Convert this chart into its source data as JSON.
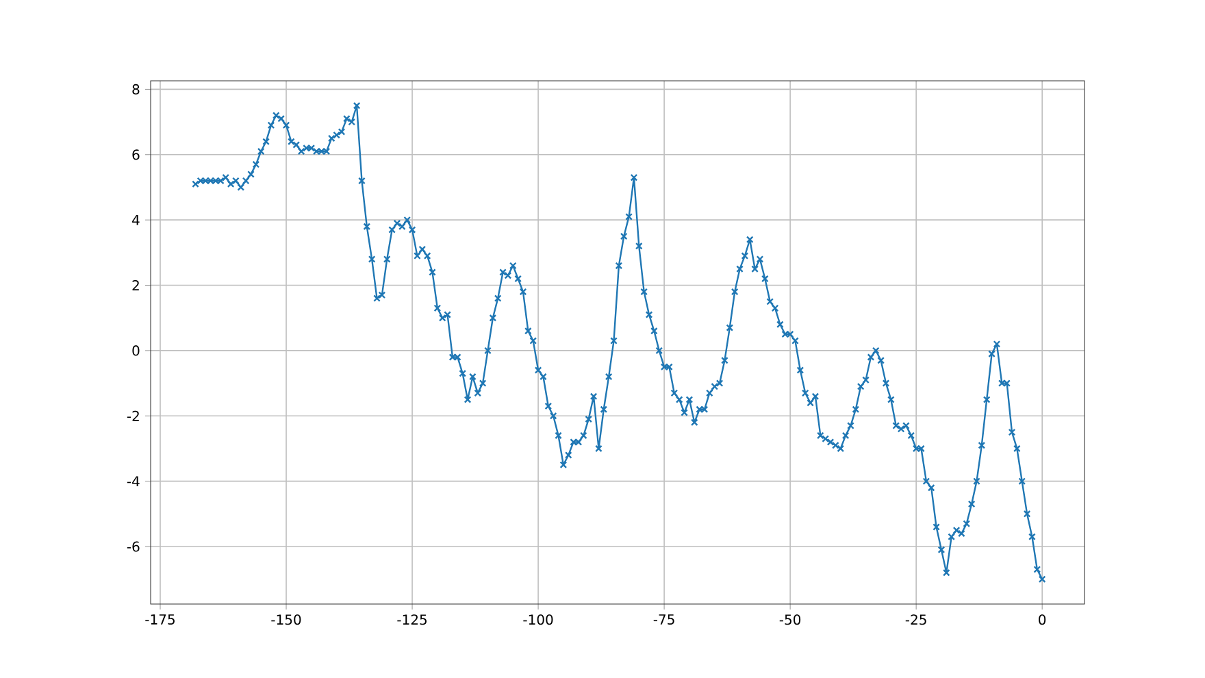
{
  "chart_data": {
    "type": "line",
    "marker": "cross",
    "line_style": "solid",
    "grid": true,
    "xlim": [
      -176.9,
      8.4
    ],
    "ylim": [
      -7.76,
      8.26
    ],
    "xticks": [
      -175,
      -150,
      -125,
      -100,
      -75,
      -50,
      -25,
      0
    ],
    "yticks": [
      -6,
      -4,
      -2,
      0,
      2,
      4,
      6,
      8
    ],
    "x": [
      -168,
      -167,
      -166,
      -165,
      -164,
      -163,
      -162,
      -161,
      -160,
      -159,
      -158,
      -157,
      -156,
      -155,
      -154,
      -153,
      -152,
      -151,
      -150,
      -149,
      -148,
      -147,
      -146,
      -145,
      -144,
      -143,
      -142,
      -141,
      -140,
      -139,
      -138,
      -137,
      -136,
      -135,
      -134,
      -133,
      -132,
      -131,
      -130,
      -129,
      -128,
      -127,
      -126,
      -125,
      -124,
      -123,
      -122,
      -121,
      -120,
      -119,
      -118,
      -117,
      -116,
      -115,
      -114,
      -113,
      -112,
      -111,
      -110,
      -109,
      -108,
      -107,
      -106,
      -105,
      -104,
      -103,
      -102,
      -101,
      -100,
      -99,
      -98,
      -97,
      -96,
      -95,
      -94,
      -93,
      -92,
      -91,
      -90,
      -89,
      -88,
      -87,
      -86,
      -85,
      -84,
      -83,
      -82,
      -81,
      -80,
      -79,
      -78,
      -77,
      -76,
      -75,
      -74,
      -73,
      -72,
      -71,
      -70,
      -69,
      -68,
      -67,
      -66,
      -65,
      -64,
      -63,
      -62,
      -61,
      -60,
      -59,
      -58,
      -57,
      -56,
      -55,
      -54,
      -53,
      -52,
      -51,
      -50,
      -49,
      -48,
      -47,
      -46,
      -45,
      -44,
      -43,
      -42,
      -41,
      -40,
      -39,
      -38,
      -37,
      -36,
      -35,
      -34,
      -33,
      -32,
      -31,
      -30,
      -29,
      -28,
      -27,
      -26,
      -25,
      -24,
      -23,
      -22,
      -21,
      -20,
      -19,
      -18,
      -17,
      -16,
      -15,
      -14,
      -13,
      -12,
      -11,
      -10,
      -9,
      -8,
      -7,
      -6,
      -5,
      -4,
      -3,
      -2,
      -1,
      0
    ],
    "series": [
      {
        "color": "#1f77b4",
        "values": [
          5.1,
          5.2,
          5.2,
          5.2,
          5.2,
          5.2,
          5.3,
          5.1,
          5.2,
          5.0,
          5.2,
          5.4,
          5.7,
          6.1,
          6.4,
          6.9,
          7.2,
          7.1,
          6.9,
          6.4,
          6.3,
          6.1,
          6.2,
          6.2,
          6.1,
          6.1,
          6.1,
          6.5,
          6.6,
          6.7,
          7.1,
          7.0,
          7.5,
          5.2,
          3.8,
          2.8,
          1.6,
          1.7,
          2.8,
          3.7,
          3.9,
          3.8,
          4.0,
          3.7,
          2.9,
          3.1,
          2.9,
          2.4,
          1.3,
          1.0,
          1.1,
          -0.2,
          -0.2,
          -0.7,
          -1.5,
          -0.8,
          -1.3,
          -1.0,
          0.0,
          1.0,
          1.6,
          2.4,
          2.3,
          2.6,
          2.2,
          1.8,
          0.6,
          0.3,
          -0.6,
          -0.8,
          -1.7,
          -2.0,
          -2.6,
          -3.5,
          -3.2,
          -2.8,
          -2.8,
          -2.6,
          -2.1,
          -1.4,
          -3.0,
          -1.8,
          -0.8,
          0.3,
          2.6,
          3.5,
          4.1,
          5.3,
          3.2,
          1.8,
          1.1,
          0.6,
          0.0,
          -0.5,
          -0.5,
          -1.3,
          -1.5,
          -1.9,
          -1.5,
          -2.2,
          -1.8,
          -1.8,
          -1.3,
          -1.1,
          -1.0,
          -0.3,
          0.7,
          1.8,
          2.5,
          2.9,
          3.4,
          2.5,
          2.8,
          2.2,
          1.5,
          1.3,
          0.8,
          0.5,
          0.5,
          0.3,
          -0.6,
          -1.3,
          -1.6,
          -1.4,
          -2.6,
          -2.7,
          -2.8,
          -2.9,
          -3.0,
          -2.6,
          -2.3,
          -1.8,
          -1.1,
          -0.9,
          -0.2,
          0.0,
          -0.3,
          -1.0,
          -1.5,
          -2.3,
          -2.4,
          -2.3,
          -2.6,
          -3.0,
          -3.0,
          -4.0,
          -4.2,
          -5.4,
          -6.1,
          -6.8,
          -5.7,
          -5.5,
          -5.6,
          -5.3,
          -4.7,
          -4.0,
          -2.9,
          -1.5,
          -0.1,
          0.2,
          -1.0,
          -1.0,
          -2.5,
          -3.0,
          -4.0,
          -5.0,
          -5.7,
          -6.7,
          -7.0
        ]
      }
    ]
  }
}
